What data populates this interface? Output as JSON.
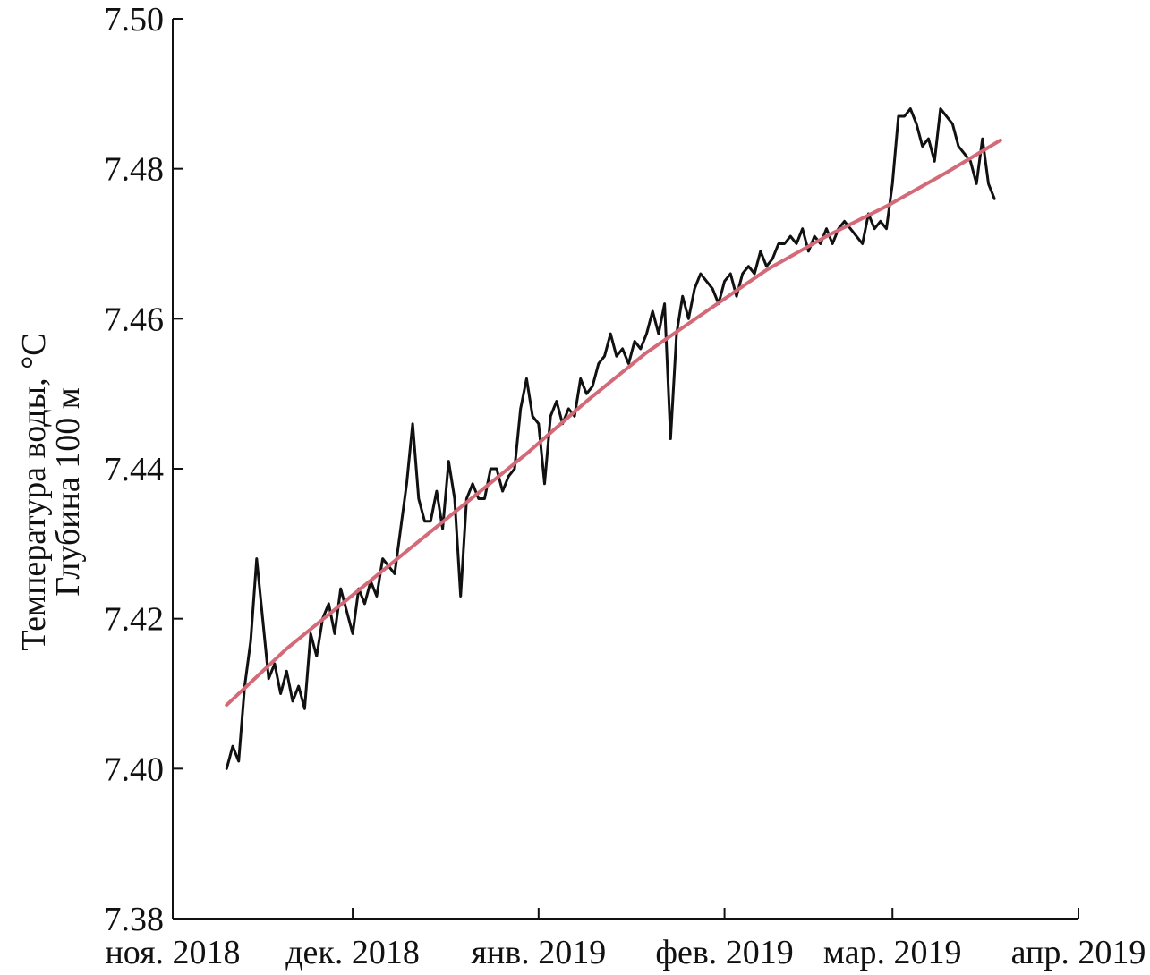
{
  "chart_data": {
    "type": "line",
    "ylabel_line1": "Температура воды, °C",
    "ylabel_line2": "Глубина 100 м",
    "xlabel": "",
    "ylim": [
      7.38,
      7.5
    ],
    "yticks": [
      7.38,
      7.4,
      7.42,
      7.44,
      7.46,
      7.48,
      7.5
    ],
    "ytick_labels": [
      "7.38",
      "7.40",
      "7.42",
      "7.44",
      "7.46",
      "7.48",
      "7.50"
    ],
    "xlim": [
      "2018-11-01",
      "2019-04-01"
    ],
    "xticks": [
      "2018-11-01",
      "2018-12-01",
      "2019-01-01",
      "2019-02-01",
      "2019-03-01",
      "2019-04-01"
    ],
    "xtick_labels": [
      "ноя. 2018",
      "дек. 2018",
      "янв. 2019",
      "фев. 2019",
      "мар. 2019",
      "апр. 2019"
    ],
    "grid": false,
    "legend": "none",
    "series": [
      {
        "role": "measurements",
        "color": "#111111",
        "x": [
          "2018-11-10",
          "2018-11-11",
          "2018-11-12",
          "2018-11-13",
          "2018-11-14",
          "2018-11-15",
          "2018-11-16",
          "2018-11-17",
          "2018-11-18",
          "2018-11-19",
          "2018-11-20",
          "2018-11-21",
          "2018-11-22",
          "2018-11-23",
          "2018-11-24",
          "2018-11-25",
          "2018-11-26",
          "2018-11-27",
          "2018-11-28",
          "2018-11-29",
          "2018-11-30",
          "2018-12-01",
          "2018-12-02",
          "2018-12-03",
          "2018-12-04",
          "2018-12-05",
          "2018-12-06",
          "2018-12-07",
          "2018-12-08",
          "2018-12-09",
          "2018-12-10",
          "2018-12-11",
          "2018-12-12",
          "2018-12-13",
          "2018-12-14",
          "2018-12-15",
          "2018-12-16",
          "2018-12-17",
          "2018-12-18",
          "2018-12-19",
          "2018-12-20",
          "2018-12-21",
          "2018-12-22",
          "2018-12-23",
          "2018-12-24",
          "2018-12-25",
          "2018-12-26",
          "2018-12-27",
          "2018-12-28",
          "2018-12-29",
          "2018-12-30",
          "2018-12-31",
          "2019-01-01",
          "2019-01-02",
          "2019-01-03",
          "2019-01-04",
          "2019-01-05",
          "2019-01-06",
          "2019-01-07",
          "2019-01-08",
          "2019-01-09",
          "2019-01-10",
          "2019-01-11",
          "2019-01-12",
          "2019-01-13",
          "2019-01-14",
          "2019-01-15",
          "2019-01-16",
          "2019-01-17",
          "2019-01-18",
          "2019-01-19",
          "2019-01-20",
          "2019-01-21",
          "2019-01-22",
          "2019-01-23",
          "2019-01-24",
          "2019-01-25",
          "2019-01-26",
          "2019-01-27",
          "2019-01-28",
          "2019-01-29",
          "2019-01-30",
          "2019-01-31",
          "2019-02-01",
          "2019-02-02",
          "2019-02-03",
          "2019-02-04",
          "2019-02-05",
          "2019-02-06",
          "2019-02-07",
          "2019-02-08",
          "2019-02-09",
          "2019-02-10",
          "2019-02-11",
          "2019-02-12",
          "2019-02-13",
          "2019-02-14",
          "2019-02-15",
          "2019-02-16",
          "2019-02-17",
          "2019-02-18",
          "2019-02-19",
          "2019-02-20",
          "2019-02-21",
          "2019-02-22",
          "2019-02-23",
          "2019-02-24",
          "2019-02-25",
          "2019-02-26",
          "2019-02-27",
          "2019-02-28",
          "2019-03-01",
          "2019-03-02",
          "2019-03-03",
          "2019-03-04",
          "2019-03-05",
          "2019-03-06",
          "2019-03-07",
          "2019-03-08",
          "2019-03-09",
          "2019-03-10",
          "2019-03-11",
          "2019-03-12",
          "2019-03-13",
          "2019-03-14",
          "2019-03-15",
          "2019-03-16",
          "2019-03-17",
          "2019-03-18"
        ],
        "y": [
          7.4,
          7.403,
          7.401,
          7.411,
          7.417,
          7.428,
          7.42,
          7.412,
          7.414,
          7.41,
          7.413,
          7.409,
          7.411,
          7.408,
          7.418,
          7.415,
          7.42,
          7.422,
          7.418,
          7.424,
          7.421,
          7.418,
          7.424,
          7.422,
          7.425,
          7.423,
          7.428,
          7.427,
          7.426,
          7.432,
          7.438,
          7.446,
          7.436,
          7.433,
          7.433,
          7.437,
          7.432,
          7.441,
          7.436,
          7.423,
          7.436,
          7.438,
          7.436,
          7.436,
          7.44,
          7.44,
          7.437,
          7.439,
          7.44,
          7.448,
          7.452,
          7.447,
          7.446,
          7.438,
          7.447,
          7.449,
          7.446,
          7.448,
          7.447,
          7.452,
          7.45,
          7.451,
          7.454,
          7.455,
          7.458,
          7.455,
          7.456,
          7.454,
          7.457,
          7.456,
          7.458,
          7.461,
          7.458,
          7.462,
          7.444,
          7.458,
          7.463,
          7.46,
          7.464,
          7.466,
          7.465,
          7.464,
          7.462,
          7.465,
          7.466,
          7.463,
          7.466,
          7.467,
          7.466,
          7.469,
          7.467,
          7.468,
          7.47,
          7.47,
          7.471,
          7.47,
          7.472,
          7.469,
          7.471,
          7.47,
          7.472,
          7.47,
          7.472,
          7.473,
          7.472,
          7.471,
          7.47,
          7.474,
          7.472,
          7.473,
          7.472,
          7.478,
          7.487,
          7.487,
          7.488,
          7.486,
          7.483,
          7.484,
          7.481,
          7.488,
          7.487,
          7.486,
          7.483,
          7.482,
          7.481,
          7.478,
          7.484,
          7.478,
          7.476
        ]
      },
      {
        "role": "trend",
        "color": "#d46a78",
        "x": [
          "2018-11-10",
          "2018-11-20",
          "2018-11-30",
          "2018-12-10",
          "2018-12-20",
          "2018-12-30",
          "2019-01-09",
          "2019-01-19",
          "2019-01-29",
          "2019-02-08",
          "2019-02-18",
          "2019-02-28",
          "2019-03-10",
          "2019-03-19"
        ],
        "y": [
          7.4085,
          7.416,
          7.4225,
          7.429,
          7.4355,
          7.442,
          7.449,
          7.4555,
          7.461,
          7.4665,
          7.471,
          7.475,
          7.4795,
          7.4838
        ]
      }
    ]
  }
}
